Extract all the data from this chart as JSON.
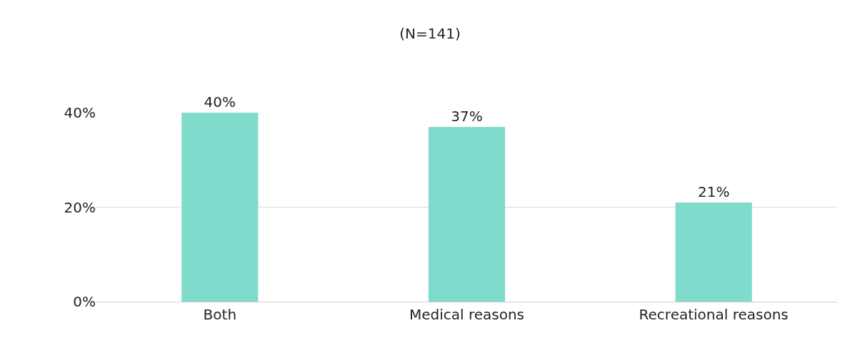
{
  "chart_data": {
    "type": "bar",
    "title": "(N=141)",
    "categories": [
      "Both",
      "Medical reasons",
      "Recreational reasons"
    ],
    "values": [
      40,
      37,
      21
    ],
    "color": "#7fdbcc",
    "ylim": [
      0,
      40
    ],
    "yticks": [
      {
        "value": 0,
        "label": "0%"
      },
      {
        "value": 20,
        "label": "20%"
      },
      {
        "value": 40,
        "label": "40%"
      }
    ],
    "grid": "y",
    "data_labels": true,
    "value_labels": [
      "40%",
      "37%",
      "21%"
    ]
  }
}
